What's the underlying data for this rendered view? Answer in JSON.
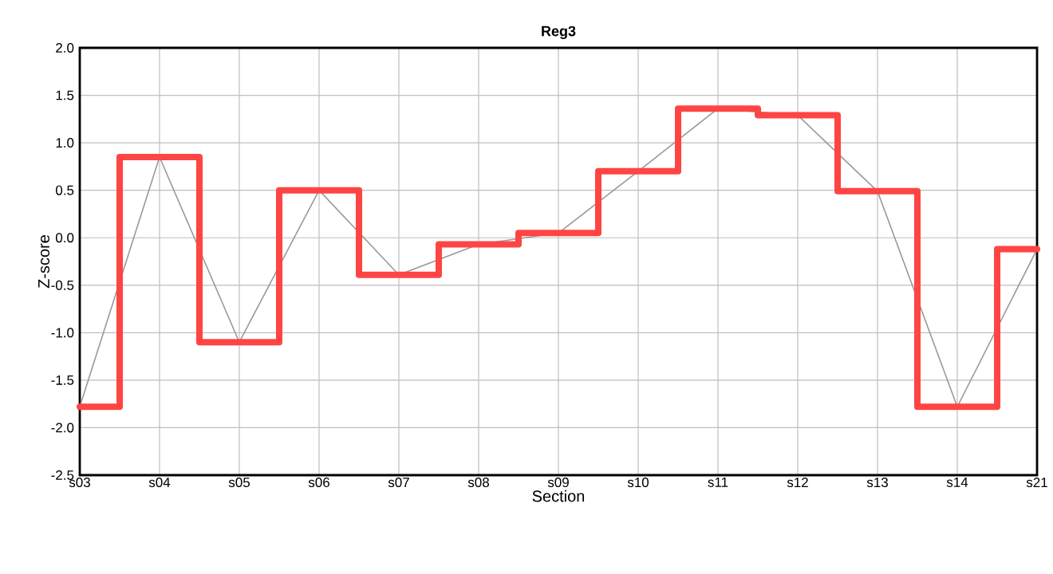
{
  "chart_data": {
    "type": "line",
    "title": "Reg3",
    "xlabel": "Section",
    "ylabel": "Z-score",
    "categories": [
      "s03",
      "s04",
      "s05",
      "s06",
      "s07",
      "s08",
      "s09",
      "s10",
      "s11",
      "s12",
      "s13",
      "s14",
      "s21"
    ],
    "series": [
      {
        "type": "step",
        "color": "#ff4444",
        "values": [
          -1.78,
          0.85,
          -1.1,
          0.5,
          -0.39,
          -0.07,
          0.05,
          0.7,
          1.36,
          1.29,
          0.49,
          -1.78,
          -0.12
        ]
      },
      {
        "color": "#999999",
        "values": [
          -1.78,
          0.85,
          -1.1,
          0.5,
          -0.39,
          -0.07,
          0.05,
          0.7,
          1.36,
          1.29,
          0.49,
          -1.78,
          -0.12
        ]
      }
    ],
    "ylim": [
      -2.5,
      2.0
    ],
    "yticks": [
      {
        "value": -2.5,
        "label": "-2.5"
      },
      {
        "value": -2.0,
        "label": "-2.0"
      },
      {
        "value": -1.5,
        "label": "-1.5"
      },
      {
        "value": -1.0,
        "label": "-1.0"
      },
      {
        "value": -0.5,
        "label": "-0.5"
      },
      {
        "value": 0.0,
        "label": "0.0"
      },
      {
        "value": 0.5,
        "label": "0.5"
      },
      {
        "value": 1.0,
        "label": "1.0"
      },
      {
        "value": 1.5,
        "label": "1.5"
      },
      {
        "value": 2.0,
        "label": "2.0"
      }
    ],
    "grid": true
  }
}
